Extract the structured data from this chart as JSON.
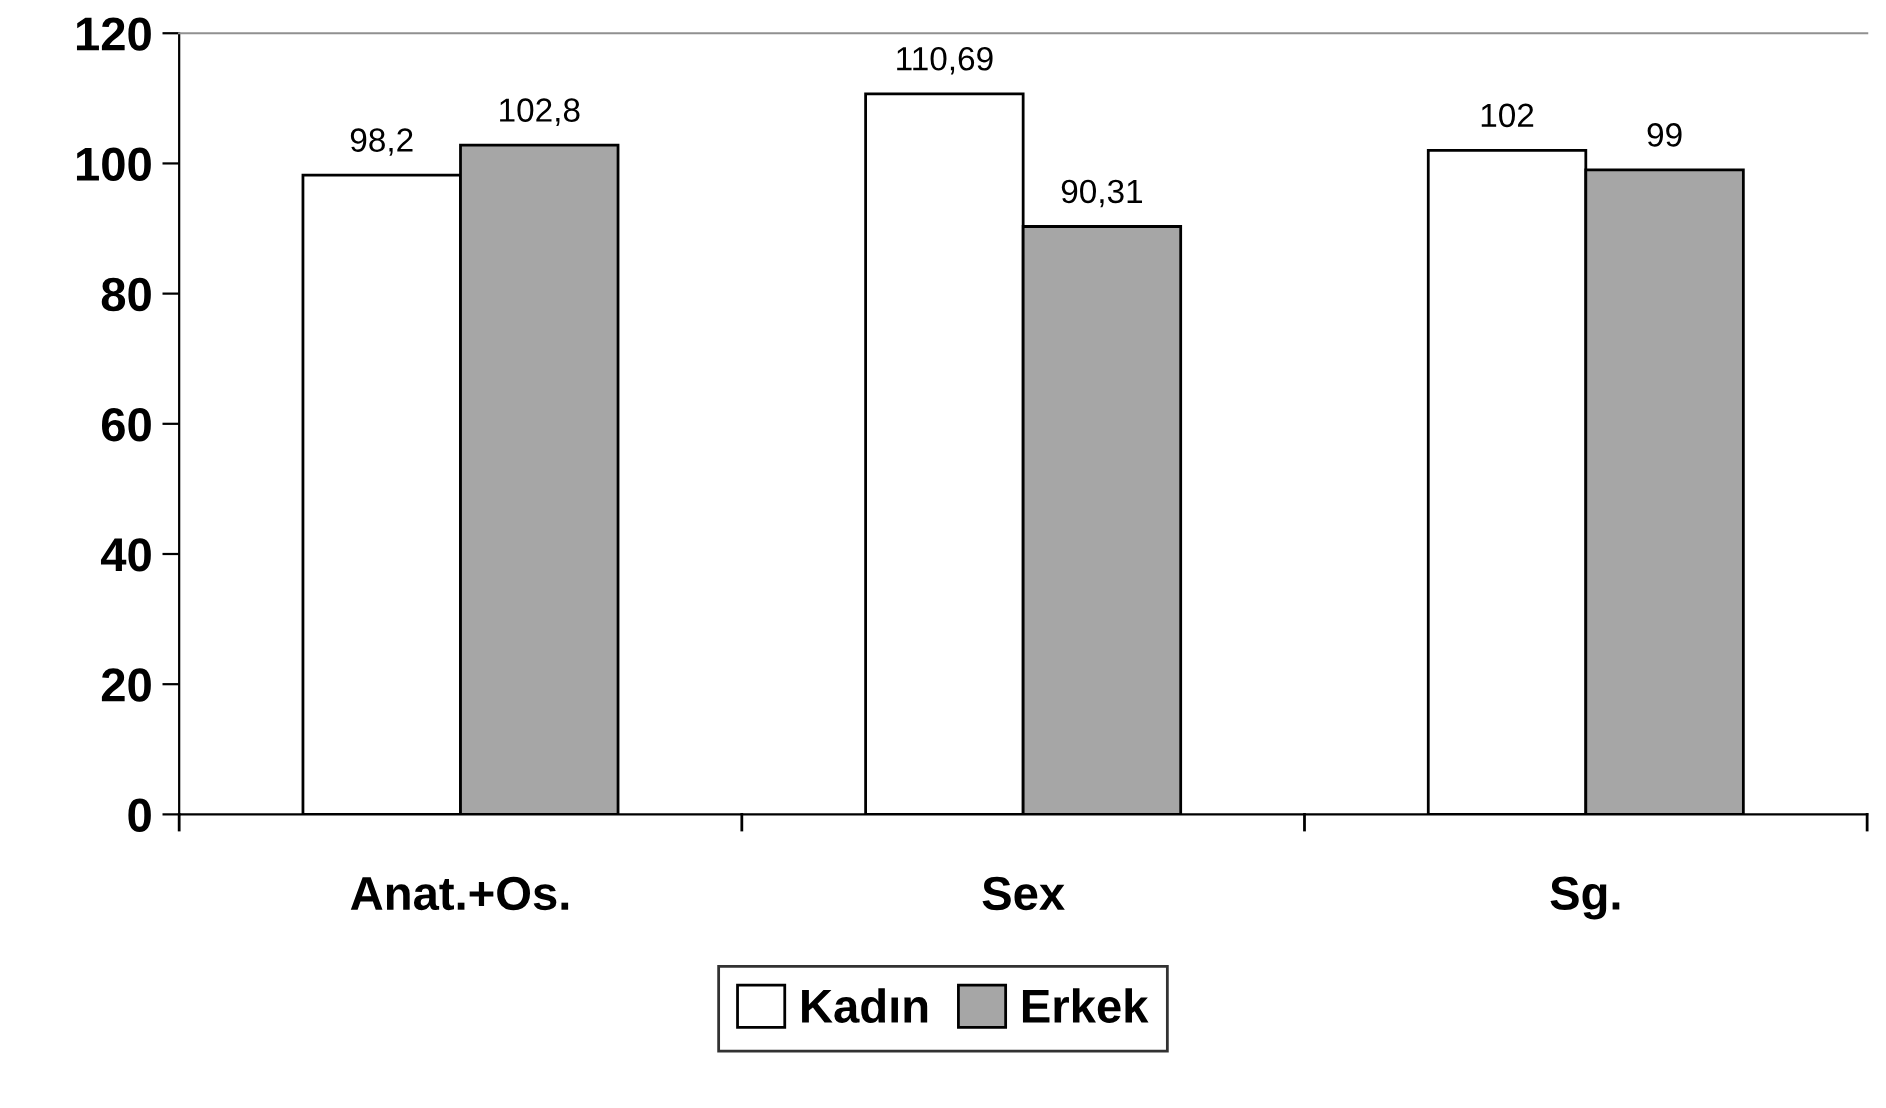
{
  "chart_data": {
    "type": "bar",
    "categories": [
      "Anat.+Os.",
      "Sex",
      "Sg."
    ],
    "series": [
      {
        "name": "Kadın",
        "color": "#ffffff",
        "values": [
          98.2,
          110.69,
          102
        ],
        "value_labels": [
          "98,2",
          "110,69",
          "102"
        ]
      },
      {
        "name": "Erkek",
        "color": "#a6a6a6",
        "values": [
          102.8,
          90.31,
          99
        ],
        "value_labels": [
          "102,8",
          "90,31",
          "99"
        ]
      }
    ],
    "ylim": [
      0,
      120
    ],
    "yticks": [
      0,
      20,
      40,
      60,
      80,
      100,
      120
    ],
    "grid": false,
    "legend": "bottom"
  }
}
